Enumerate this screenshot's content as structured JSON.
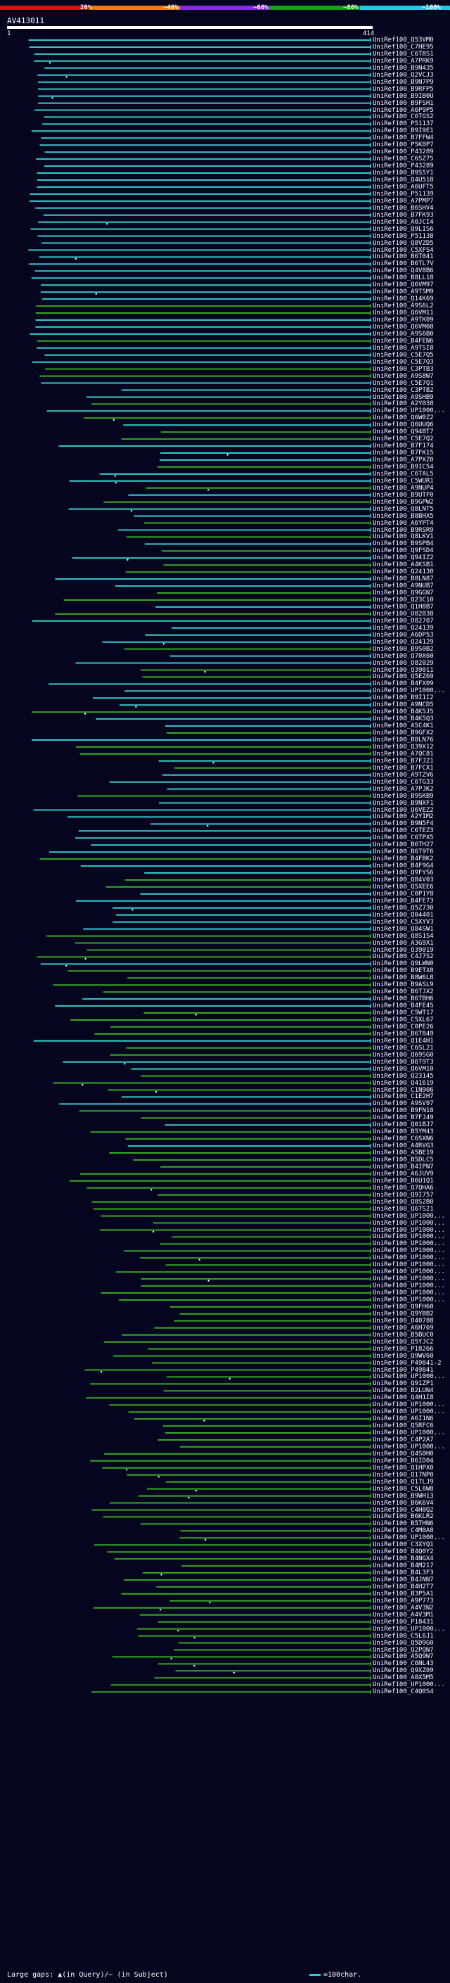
{
  "scale": {
    "ticks": [
      "20%",
      "~40%",
      "~60%",
      "~80%",
      "~100%"
    ],
    "band_colors": [
      "#e01010",
      "#f07a10",
      "#8a2be2",
      "#18a018",
      "#20c8e0"
    ]
  },
  "query": {
    "title": "AV413011",
    "start": "1",
    "end": "414"
  },
  "colors": {
    "cyan": "#33cccc",
    "green": "#33aa22",
    "magenta": "#cc33cc",
    "dot": "#ffffff"
  },
  "hits": [
    "UniRef100_Q53VM0",
    "UniRef100_C7HE95",
    "UniRef100_C6T8S1",
    "UniRef100_A7PRK9",
    "UniRef100_B9N435",
    "UniRef100_Q2VCJ3",
    "UniRef100_B9N7P9",
    "UniRef100_B9RFP5",
    "UniRef100_B9IB0U",
    "UniRef100_B9FSH1",
    "UniRef100_A6P9P5",
    "UniRef100_C6TGS2",
    "UniRef100_P51137",
    "UniRef100_B9I9E1",
    "UniRef100_B7FFW4",
    "UniRef100_P5K0P7",
    "UniRef100_P43289",
    "UniRef100_C6SZ75",
    "UniRef100_P43289",
    "UniRef100_B9S5Y1",
    "UniRef100_Q4U518",
    "UniRef100_A6UFT5",
    "UniRef100_P51139",
    "UniRef100_A7PMP7",
    "UniRef100_B6SHV4",
    "UniRef100_B7FK93",
    "UniRef100_A0JCI4",
    "UniRef100_Q9LIS6",
    "UniRef100_P51138",
    "UniRef100_Q8VZD5",
    "UniRef100_C5XFS4",
    "UniRef100_B6T041",
    "UniRef100_B6TL7V",
    "UniRef100_Q4V8B6",
    "UniRef100_B8LL18",
    "UniRef100_Q6VM97",
    "UniRef100_A9TSM9",
    "UniRef100_Q14K69",
    "UniRef100_A9S6L2",
    "UniRef100_Q6VM11",
    "UniRef100_A9TK09",
    "UniRef100_Q6VM08",
    "UniRef100_A9S6B0",
    "UniRef100_B4FEN6",
    "UniRef100_A9TSI8",
    "UniRef100_C5E7Q5",
    "UniRef100_C5E7Q3",
    "UniRef100_C3PTB3",
    "UniRef100_A9S8W7",
    "UniRef100_C5E7Q1",
    "UniRef100_C3PTB2",
    "UniRef100_A9SHB9",
    "UniRef100_A2Y038",
    "UniRef100_UP1000...",
    "UniRef100_Q6W0Z2",
    "UniRef100_Q6UUQ6",
    "UniRef100_Q94BT7",
    "UniRef100_C5E7Q2",
    "UniRef100_B7F174",
    "UniRef100_B7FK15",
    "UniRef100_A7PXZ0",
    "UniRef100_B9IC54",
    "UniRef100_C6TAL5",
    "UniRef100_C5WUR1",
    "UniRef100_A9NUP4",
    "UniRef100_B9UTF0",
    "UniRef100_B9GPW2",
    "UniRef100_Q8LNT5",
    "UniRef100_B8BHX5",
    "UniRef100_A6YPT4",
    "UniRef100_B9RSR9",
    "UniRef100_Q8LKV1",
    "UniRef100_B9SPB4",
    "UniRef100_Q9FSD4",
    "UniRef100_Q94IZ2",
    "UniRef100_A4KSB1",
    "UniRef100_Q24130",
    "UniRef100_B8LN87",
    "UniRef100_A9NUB7",
    "UniRef100_Q9GGN7",
    "UniRef100_Q23C10",
    "UniRef100_Q1H8B7",
    "UniRef100_O82038",
    "UniRef100_O82707",
    "UniRef100_Q24139",
    "UniRef100_A6DP53",
    "UniRef100_Q24129",
    "UniRef100_B9S0B2",
    "UniRef100_Q70X60",
    "UniRef100_O82029",
    "UniRef100_Q39011",
    "UniRef100_Q5EZ69",
    "UniRef100_B4FX09",
    "UniRef100_UP1000...",
    "UniRef100_B9I1I2",
    "UniRef100_A9NCD5",
    "UniRef100_B4K5J5",
    "UniRef100_B4K5Q3",
    "UniRef100_A5C4K1",
    "UniRef100_B9GFX2",
    "UniRef100_B8LN76",
    "UniRef100_Q39X12",
    "UniRef100_A7QC81",
    "UniRef100_B7FJ21",
    "UniRef100_B7FCX1",
    "UniRef100_A9TZV6",
    "UniRef100_C6TG33",
    "UniRef100_A7PJK2",
    "UniRef100_B9SKB9",
    "UniRef100_B9NXF1",
    "UniRef100_Q6VEZ2",
    "UniRef100_A2YIM2",
    "UniRef100_B9N5F4",
    "UniRef100_C6TEZ3",
    "UniRef100_C6TPX5",
    "UniRef100_B6TH27",
    "UniRef100_B6T9T6",
    "UniRef100_B4FBK2",
    "UniRef100_B4F9G4",
    "UniRef100_Q9FYS6",
    "UniRef100_Q84V03",
    "UniRef100_Q5XEE6",
    "UniRef100_C0P1Y8",
    "UniRef100_B4FE73",
    "UniRef100_Q5Z730",
    "UniRef100_Q04401",
    "UniRef100_C5XYV3",
    "UniRef100_Q84SW1",
    "UniRef100_Q8S1S4",
    "UniRef100_A3G9X1",
    "UniRef100_Q39019",
    "UniRef100_C4J7S2",
    "UniRef100_Q9LWN0",
    "UniRef100_B9ETX8",
    "UniRef100_B8W6L8",
    "UniRef100_B9ASL9",
    "UniRef100_B6TJX2",
    "UniRef100_B6TBH6",
    "UniRef100_B4FE45",
    "UniRef100_C5WT17",
    "UniRef100_C5XL67",
    "UniRef100_C0PE26",
    "UniRef100_B6T849",
    "UniRef100_Q1E4H1",
    "UniRef100_C6SL21",
    "UniRef100_Q69SG0",
    "UniRef100_B6T9T3",
    "UniRef100_Q6VM10",
    "UniRef100_Q23145",
    "UniRef100_Q41619",
    "UniRef100_C1N906",
    "UniRef100_C1E2H7",
    "UniRef100_A9SV97",
    "UniRef100_B9FN18",
    "UniRef100_B7FJ49",
    "UniRef100_Q01BJ7",
    "UniRef100_B5YM43",
    "UniRef100_C6SXN6",
    "UniRef100_A4RVG3",
    "UniRef100_A5BE19",
    "UniRef100_B5DLC5",
    "UniRef100_B4IPN7",
    "UniRef100_A6JUV9",
    "UniRef100_B6U1Q1",
    "UniRef100_Q7QHA6",
    "UniRef100_Q9I757",
    "UniRef100_Q8S2B0",
    "UniRef100_Q6TS21",
    "UniRef100_UP1000...",
    "UniRef100_UP1000...",
    "UniRef100_UP1000...",
    "UniRef100_UP1000...",
    "UniRef100_UP1000...",
    "UniRef100_UP1000...",
    "UniRef100_UP1000...",
    "UniRef100_UP1000...",
    "UniRef100_UP1000...",
    "UniRef100_UP1000...",
    "UniRef100_UP1000...",
    "UniRef100_UP1000...",
    "UniRef100_UP1000...",
    "UniRef100_Q9FH60",
    "UniRef100_Q9YBB2",
    "UniRef100_O40788",
    "UniRef100_A6H769",
    "UniRef100_B5BUC0",
    "UniRef100_Q5YJC2",
    "UniRef100_P18266",
    "UniRef100_Q9WV60",
    "UniRef100_P49841-2",
    "UniRef100_P49841",
    "UniRef100_UP1000...",
    "UniRef100_Q91ZP1",
    "UniRef100_B2LUN4",
    "UniRef100_Q4H1I8",
    "UniRef100_UP1000...",
    "UniRef100_UP1000...",
    "UniRef100_A6I1N6",
    "UniRef100_Q5RFC6",
    "UniRef100_UP1000...",
    "UniRef100_C4P2A7",
    "UniRef100_UP1000...",
    "UniRef100_Q4S0H0",
    "UniRef100_B6ID04",
    "UniRef100_Q1HPX0",
    "UniRef100_Q17NP0",
    "UniRef100_Q17LJ9",
    "UniRef100_C5L6W8",
    "UniRef100_B9WH13",
    "UniRef100_B6K6V4",
    "UniRef100_C4H0Q2",
    "UniRef100_B6KLR2",
    "UniRef100_B5THN6",
    "UniRef100_C4M0A8",
    "UniRef100_UP1000...",
    "UniRef100_C3XYQ1",
    "UniRef100_B4Q0Y2",
    "UniRef100_B4NGX4",
    "UniRef100_B4M217",
    "UniRef100_B4L3F3",
    "UniRef100_B4JNN7",
    "UniRef100_B4H2T7",
    "UniRef100_B3P5A1",
    "UniRef100_A9P773",
    "UniRef100_A4V3N2",
    "UniRef100_A4V3M1",
    "UniRef100_P18431",
    "UniRef100_UP1000...",
    "UniRef100_C5L6J1",
    "UniRef100_Q5D9G0",
    "UniRef100_Q2PQN7",
    "UniRef100_A5Q9W7",
    "UniRef100_C6NL43",
    "UniRef100_Q9XZ09",
    "UniRef100_A8X5M5",
    "UniRef100_UP1000...",
    "UniRef100_C4Q0S4"
  ],
  "legend": {
    "left": "Large gaps: ▲(in Query)/~ (in Subject)",
    "right": "=100char."
  }
}
